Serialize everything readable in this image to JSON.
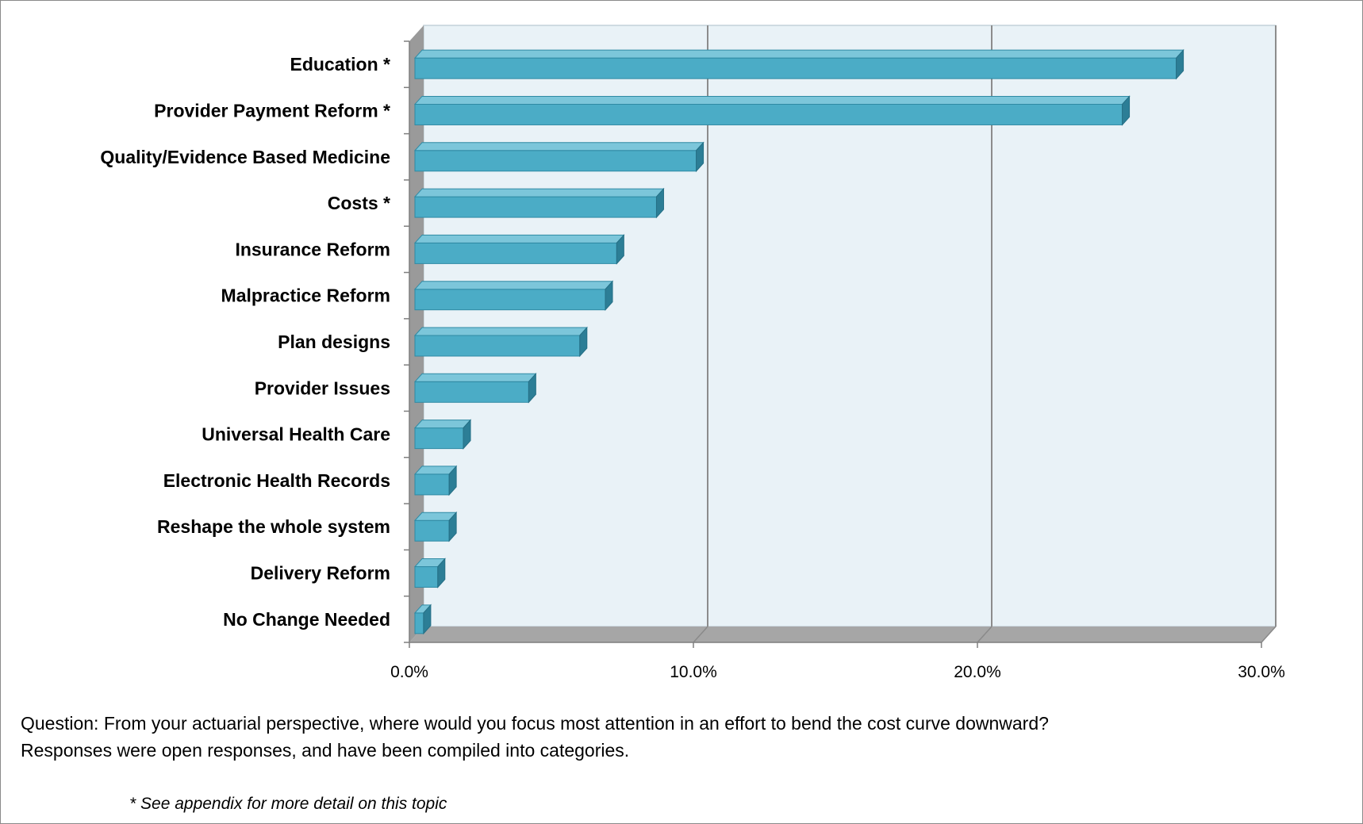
{
  "chart_data": {
    "type": "bar",
    "orientation": "horizontal",
    "categories": [
      "Education  *",
      "Provider Payment Reform *",
      "Quality/Evidence Based Medicine",
      "Costs *",
      "Insurance Reform",
      "Malpractice Reform",
      "Plan designs",
      "Provider Issues",
      "Universal Health Care",
      "Electronic Health Records",
      "Reshape the whole system",
      "Delivery Reform",
      "No Change Needed"
    ],
    "values": [
      27.0,
      25.1,
      10.1,
      8.7,
      7.3,
      6.9,
      6.0,
      4.2,
      1.9,
      1.4,
      1.4,
      1.0,
      0.5
    ],
    "value_unit": "%",
    "xlim": [
      0,
      30
    ],
    "xticks": [
      0,
      10,
      20,
      30
    ],
    "xtick_labels": [
      "0.0%",
      "10.0%",
      "20.0%",
      "30.0%"
    ],
    "grid": "vertical",
    "style": "3d",
    "colors": {
      "bar_front": "#4bacc6",
      "bar_top": "#7cc6da",
      "bar_side": "#2c7e96",
      "wall": "#e9f2f7",
      "wall_border": "#c4d2da",
      "floor": "#a6a6a6",
      "left_wall": "#9a9a9a",
      "gridline": "#8c8c8c"
    }
  },
  "caption": {
    "question_line1": "Question: From your actuarial perspective, where would you focus most attention in an effort to bend the cost curve downward?",
    "question_line2": "Responses were open responses, and have been compiled into categories.",
    "footnote": "*  See appendix for more detail on this topic"
  }
}
